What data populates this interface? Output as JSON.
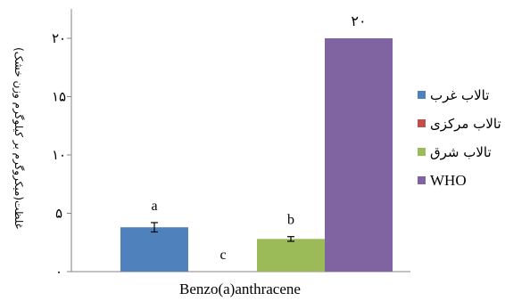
{
  "chart_data": {
    "type": "bar",
    "categories": [
      "Benzo(a)anthracene"
    ],
    "series": [
      {
        "name": "تالاب غرب",
        "values": [
          3.8
        ],
        "error": [
          0.4
        ],
        "annotation": "a",
        "color": "#4F81BD"
      },
      {
        "name": "تالاب مرکزی",
        "values": [
          0
        ],
        "error": [
          0
        ],
        "annotation": "c",
        "color": "#C0504D"
      },
      {
        "name": "تالاب شرق",
        "values": [
          2.8
        ],
        "error": [
          0.2
        ],
        "annotation": "b",
        "color": "#9BBB59"
      },
      {
        "name": "WHO",
        "values": [
          20
        ],
        "error": [
          0
        ],
        "annotation": "۲۰",
        "color": "#8064A2"
      }
    ],
    "ylabel": "غلظت(میکروگرم بر کیلوگرم وزن خشک)",
    "xlabel": "",
    "ylim": [
      0,
      24
    ],
    "yticks": [
      0,
      5,
      10,
      15,
      20
    ],
    "ytick_labels": [
      "۰",
      "۵",
      "۱۰",
      "۱۵",
      "۲۰"
    ],
    "grid": false,
    "legend_position": "right"
  }
}
